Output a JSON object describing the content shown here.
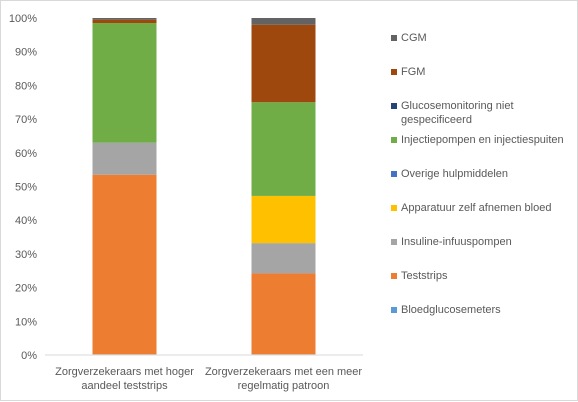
{
  "chart_data": {
    "type": "bar",
    "stacked": true,
    "ylim": [
      0,
      100
    ],
    "y_ticks": [
      "0%",
      "10%",
      "20%",
      "30%",
      "40%",
      "50%",
      "60%",
      "70%",
      "80%",
      "90%",
      "100%"
    ],
    "y_unit": "%",
    "grid": false,
    "legend_position": "right",
    "categories": [
      [
        "Zorgverzekeraars met hoger",
        "aandeel teststrips"
      ],
      [
        "Zorgverzekeraars met een meer",
        "regelmatig patroon"
      ]
    ],
    "series": [
      {
        "name": "Bloedglucosemeters",
        "color": "#5B9BD5",
        "values": [
          0.2,
          0.2
        ]
      },
      {
        "name": "Teststrips",
        "color": "#ED7D31",
        "values": [
          53.3,
          24.0
        ]
      },
      {
        "name": "Insuline-infuuspompen",
        "color": "#A5A5A5",
        "values": [
          9.5,
          9.0
        ]
      },
      {
        "name": "Apparatuur zelf afnemen bloed",
        "color": "#FFC000",
        "values": [
          0.0,
          14.0
        ]
      },
      {
        "name": "Overige hulpmiddelen",
        "color": "#4472C4",
        "values": [
          0.0,
          0.0
        ]
      },
      {
        "name": "Injectiepompen en injectiespuiten",
        "color": "#70AD47",
        "values": [
          35.5,
          27.8
        ]
      },
      {
        "name": "Glucosemonitoring niet gespecificeerd",
        "label_lines": [
          "Glucosemonitoring niet",
          "gespecificeerd"
        ],
        "color": "#264478",
        "values": [
          0.0,
          0.0
        ]
      },
      {
        "name": "FGM",
        "color": "#9E480E",
        "values": [
          1.0,
          23.0
        ]
      },
      {
        "name": "CGM",
        "color": "#636363",
        "values": [
          0.5,
          2.0
        ]
      }
    ],
    "legend_order": [
      "CGM",
      "FGM",
      "Glucosemonitoring niet gespecificeerd",
      "Injectiepompen en injectiespuiten",
      "Overige hulpmiddelen",
      "Apparatuur zelf afnemen bloed",
      "Insuline-infuuspompen",
      "Teststrips",
      "Bloedglucosemeters"
    ]
  }
}
